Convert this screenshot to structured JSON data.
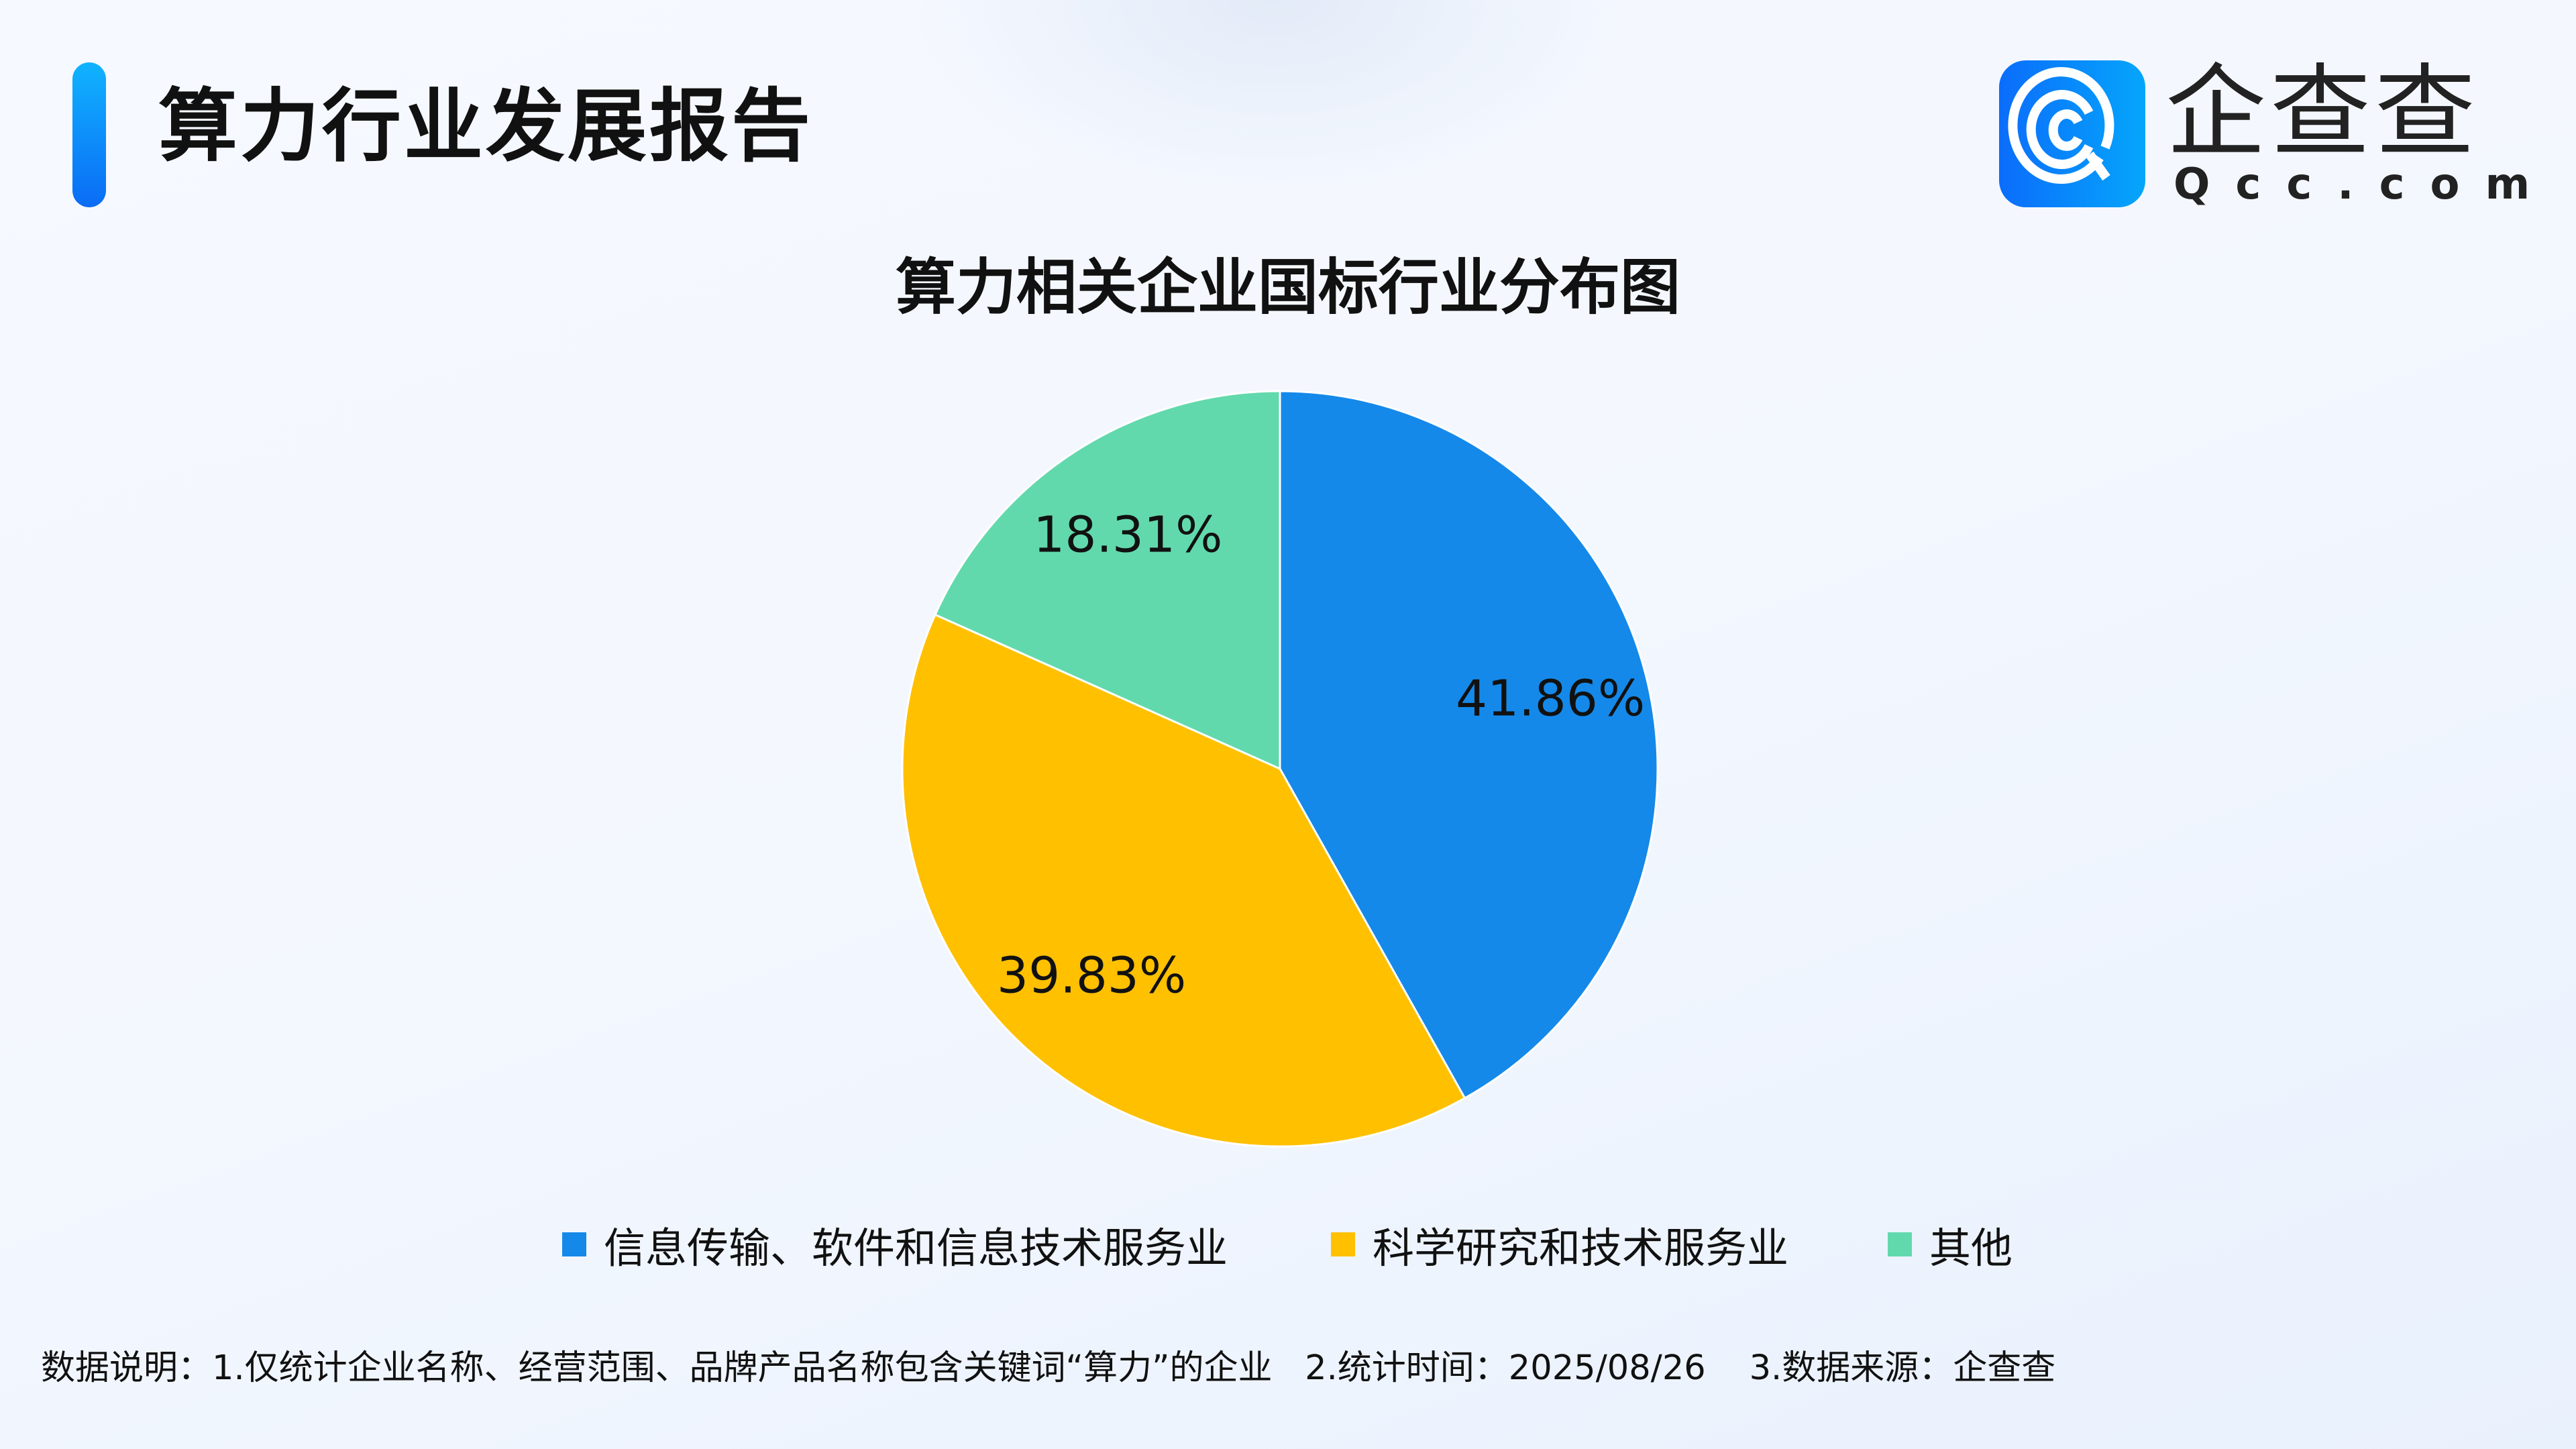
{
  "header": {
    "title": "算力行业发展报告"
  },
  "logo": {
    "name_cn": "企查查",
    "name_en": "Qcc.com"
  },
  "chart_data": {
    "type": "pie",
    "title": "算力相关企业国标行业分布图",
    "categories": [
      "信息传输、软件和信息技术服务业",
      "科学研究和技术服务业",
      "其他"
    ],
    "values": [
      41.86,
      39.83,
      18.31
    ],
    "labels": [
      "41.86%",
      "39.83%",
      "18.31%"
    ],
    "colors": [
      "#1589EA",
      "#FFC000",
      "#62D9AD"
    ],
    "legend_position": "bottom"
  },
  "footer": {
    "note": "数据说明：1.仅统计企业名称、经营范围、品牌产品名称包含关键词“算力”的企业   2.统计时间：2025/08/26    3.数据来源：企查查"
  }
}
